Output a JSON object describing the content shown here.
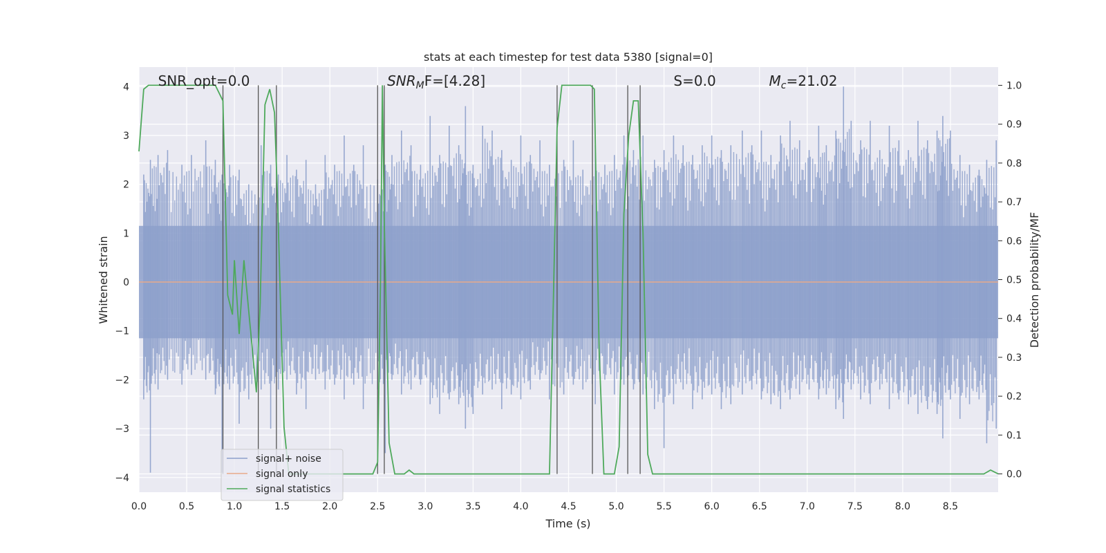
{
  "chart_data": {
    "type": "line",
    "title": "stats at each timestep for test data 5380 [signal=0]",
    "xlabel": "Time (s)",
    "ylabel": "Whitened strain",
    "y2label": "Detection probability/MF",
    "xlim": [
      0.0,
      9.0
    ],
    "ylim": [
      -4.3,
      4.4
    ],
    "y2lim": [
      -0.047,
      1.047
    ],
    "x_ticks": [
      0.0,
      0.5,
      1.0,
      1.5,
      2.0,
      2.5,
      3.0,
      3.5,
      4.0,
      4.5,
      5.0,
      5.5,
      6.0,
      6.5,
      7.0,
      7.5,
      8.0,
      8.5
    ],
    "x_tick_labels": [
      "0.0",
      "0.5",
      "1.0",
      "1.5",
      "2.0",
      "2.5",
      "3.0",
      "3.5",
      "4.0",
      "4.5",
      "5.0",
      "5.5",
      "6.0",
      "6.5",
      "7.0",
      "7.5",
      "8.0",
      "8.5"
    ],
    "y_ticks": [
      4,
      3,
      2,
      1,
      0,
      -1,
      -2,
      -3,
      -4
    ],
    "y_tick_labels": [
      "4",
      "3",
      "2",
      "1",
      "0",
      "−1",
      "−2",
      "−3",
      "−4"
    ],
    "y2_ticks": [
      1.0,
      0.9,
      0.8,
      0.7,
      0.6,
      0.5,
      0.4,
      0.3,
      0.2,
      0.1,
      0.0
    ],
    "y2_tick_labels": [
      "1.0",
      "0.9",
      "0.8",
      "0.7",
      "0.6",
      "0.5",
      "0.4",
      "0.3",
      "0.2",
      "0.1",
      "0.0"
    ],
    "grid": true,
    "legend_position": "lower-left",
    "annotations": [
      {
        "text": "SNR_opt=0.0",
        "x": 0.2
      },
      {
        "text": "SNR",
        "sub": "M",
        "text2": "F=[4.28]",
        "x": 2.6
      },
      {
        "text": "S=0.0",
        "x": 5.6
      },
      {
        "text": "M",
        "sub": "c",
        "text2": "=21.02",
        "x": 6.6
      }
    ],
    "noise": {
      "name": "signal+ noise",
      "color": "#8da0cb",
      "band": 1.15,
      "peaks": [
        [
          0.05,
          2.2,
          -2.4
        ],
        [
          0.12,
          2.5,
          -3.9
        ],
        [
          0.2,
          2.6,
          -2.2
        ],
        [
          0.3,
          2.7,
          -2.0
        ],
        [
          0.45,
          2.4,
          -2.1
        ],
        [
          0.55,
          2.6,
          -1.9
        ],
        [
          0.7,
          2.9,
          -2.0
        ],
        [
          0.8,
          2.5,
          -2.3
        ],
        [
          0.87,
          2.2,
          -3.9
        ],
        [
          0.95,
          2.4,
          -2.2
        ],
        [
          1.05,
          2.3,
          -2.9
        ],
        [
          1.15,
          2.0,
          -2.4
        ],
        [
          1.28,
          2.8,
          -2.2
        ],
        [
          1.38,
          2.4,
          -3.0
        ],
        [
          1.46,
          2.2,
          -2.2
        ],
        [
          1.55,
          2.6,
          -2.0
        ],
        [
          1.65,
          2.3,
          -2.3
        ],
        [
          1.75,
          2.5,
          -2.6
        ],
        [
          1.85,
          2.0,
          -2.0
        ],
        [
          1.95,
          2.6,
          -2.2
        ],
        [
          2.05,
          2.4,
          -2.1
        ],
        [
          2.15,
          3.0,
          -2.4
        ],
        [
          2.25,
          2.4,
          -2.1
        ],
        [
          2.35,
          2.8,
          -2.6
        ],
        [
          2.5,
          2.1,
          -2.2
        ],
        [
          2.58,
          2.4,
          -3.5
        ],
        [
          2.65,
          2.6,
          -2.0
        ],
        [
          2.75,
          3.1,
          -2.3
        ],
        [
          2.85,
          2.8,
          -2.2
        ],
        [
          2.95,
          2.4,
          -2.1
        ],
        [
          3.05,
          3.4,
          -2.5
        ],
        [
          3.15,
          2.6,
          -2.7
        ],
        [
          3.25,
          3.2,
          -2.4
        ],
        [
          3.35,
          2.8,
          -2.5
        ],
        [
          3.42,
          3.6,
          -3.0
        ],
        [
          3.5,
          2.4,
          -2.7
        ],
        [
          3.6,
          3.2,
          -2.3
        ],
        [
          3.7,
          3.1,
          -2.2
        ],
        [
          3.8,
          2.7,
          -2.6
        ],
        [
          3.9,
          2.5,
          -2.3
        ],
        [
          4.0,
          3.0,
          -2.4
        ],
        [
          4.1,
          2.6,
          -2.2
        ],
        [
          4.2,
          2.9,
          -2.0
        ],
        [
          4.3,
          2.4,
          -2.4
        ],
        [
          4.45,
          2.5,
          -2.3
        ],
        [
          4.55,
          2.9,
          -2.1
        ],
        [
          4.65,
          2.3,
          -2.2
        ],
        [
          4.78,
          2.8,
          -2.5
        ],
        [
          4.88,
          2.4,
          -2.0
        ],
        [
          4.98,
          2.6,
          -2.3
        ],
        [
          5.08,
          3.0,
          -2.1
        ],
        [
          5.18,
          2.7,
          -2.2
        ],
        [
          5.28,
          3.0,
          -2.3
        ],
        [
          5.4,
          2.5,
          -2.6
        ],
        [
          5.5,
          2.7,
          -3.4
        ],
        [
          5.6,
          3.0,
          -2.5
        ],
        [
          5.7,
          2.8,
          -2.2
        ],
        [
          5.8,
          2.6,
          -2.6
        ],
        [
          5.9,
          2.8,
          -2.4
        ],
        [
          6.0,
          3.0,
          -2.3
        ],
        [
          6.1,
          2.7,
          -2.6
        ],
        [
          6.2,
          2.8,
          -2.5
        ],
        [
          6.32,
          3.1,
          -2.3
        ],
        [
          6.42,
          2.8,
          -2.2
        ],
        [
          6.52,
          3.1,
          -2.4
        ],
        [
          6.62,
          2.6,
          -2.5
        ],
        [
          6.72,
          3.0,
          -2.6
        ],
        [
          6.82,
          3.3,
          -2.4
        ],
        [
          6.92,
          2.9,
          -2.3
        ],
        [
          7.02,
          2.7,
          -2.2
        ],
        [
          7.12,
          3.2,
          -2.4
        ],
        [
          7.2,
          2.8,
          -2.3
        ],
        [
          7.3,
          3.1,
          -2.6
        ],
        [
          7.38,
          4.0,
          -2.8
        ],
        [
          7.46,
          3.3,
          -2.2
        ],
        [
          7.56,
          2.9,
          -2.4
        ],
        [
          7.66,
          3.3,
          -2.5
        ],
        [
          7.76,
          2.7,
          -2.2
        ],
        [
          7.86,
          3.2,
          -2.6
        ],
        [
          7.96,
          2.9,
          -2.4
        ],
        [
          8.06,
          2.7,
          -2.5
        ],
        [
          8.16,
          3.3,
          -2.7
        ],
        [
          8.26,
          2.9,
          -2.6
        ],
        [
          8.36,
          3.1,
          -2.7
        ],
        [
          8.42,
          3.4,
          -3.2
        ],
        [
          8.5,
          3.1,
          -2.4
        ],
        [
          8.6,
          2.6,
          -2.8
        ],
        [
          8.7,
          2.4,
          -2.5
        ],
        [
          8.8,
          2.3,
          -2.4
        ],
        [
          8.88,
          2.5,
          -3.3
        ],
        [
          8.98,
          2.9,
          -3.0
        ]
      ]
    },
    "signal_only": {
      "name": "signal only",
      "color": "#e8a98a",
      "x": [
        0.0,
        9.0
      ],
      "y": [
        0.0,
        0.0
      ]
    },
    "statistics": {
      "name": "signal statistics",
      "color": "#4ea95b",
      "x": [
        0.0,
        0.05,
        0.1,
        0.8,
        0.88,
        0.93,
        0.98,
        1.0,
        1.05,
        1.1,
        1.18,
        1.23,
        1.27,
        1.32,
        1.37,
        1.42,
        1.45,
        1.52,
        1.57,
        2.45,
        2.5,
        2.53,
        2.55,
        2.57,
        2.62,
        2.68,
        2.78,
        2.83,
        2.88,
        2.95,
        3.05,
        4.3,
        4.35,
        4.38,
        4.43,
        4.73,
        4.77,
        4.82,
        4.87,
        4.93,
        4.98,
        5.03,
        5.08,
        5.13,
        5.18,
        5.23,
        5.28,
        5.33,
        5.38,
        5.43,
        8.85,
        8.92,
        9.0
      ],
      "y": [
        0.83,
        0.99,
        1.0,
        1.0,
        0.96,
        0.46,
        0.41,
        0.55,
        0.36,
        0.55,
        0.34,
        0.21,
        0.44,
        0.95,
        0.99,
        0.93,
        0.72,
        0.12,
        0.0,
        0.0,
        0.03,
        0.49,
        1.0,
        0.65,
        0.08,
        0.0,
        0.0,
        0.01,
        0.0,
        0.0,
        0.0,
        0.0,
        0.55,
        0.89,
        1.0,
        1.0,
        0.99,
        0.32,
        0.0,
        0.0,
        0.0,
        0.07,
        0.67,
        0.87,
        0.96,
        0.96,
        0.62,
        0.05,
        0.0,
        0.0,
        0.0,
        0.01,
        0.0
      ]
    },
    "vertical_lines_x": [
      0.88,
      1.25,
      1.44,
      2.5,
      2.57,
      4.38,
      4.75,
      5.12,
      5.25
    ]
  }
}
